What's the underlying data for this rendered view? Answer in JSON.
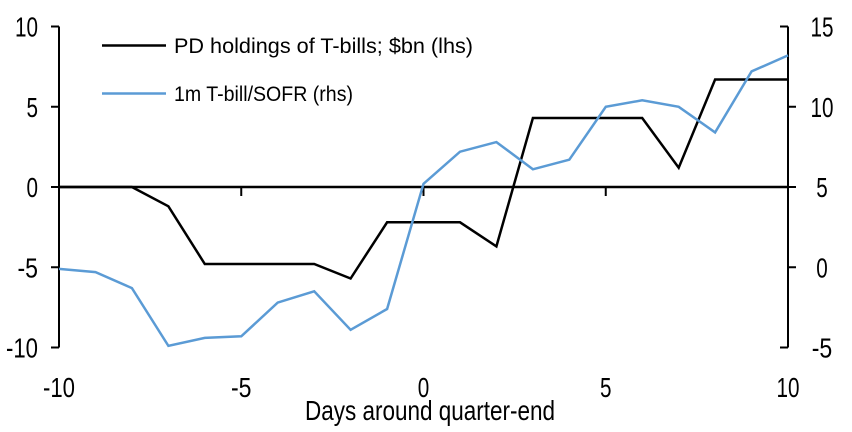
{
  "chart_data": {
    "type": "line",
    "x": [
      -10,
      -9,
      -8,
      -7,
      -6,
      -5,
      -4,
      -3,
      -2,
      -1,
      0,
      1,
      2,
      3,
      4,
      5,
      6,
      7,
      8,
      9,
      10
    ],
    "series": [
      {
        "name": "PD holdings of T-bills; $bn (lhs)",
        "axis": "left",
        "color": "#000000",
        "values": [
          0,
          0,
          0,
          -1.2,
          -4.8,
          -4.8,
          -4.8,
          -4.8,
          -5.7,
          -2.2,
          -2.2,
          -2.2,
          -3.7,
          4.3,
          4.3,
          4.3,
          4.3,
          1.2,
          6.7,
          6.7,
          6.7
        ]
      },
      {
        "name": "1m T-bill/SOFR (rhs)",
        "axis": "right",
        "color": "#5B9BD5",
        "values": [
          -0.1,
          -0.3,
          -1.3,
          -4.9,
          -4.4,
          -4.3,
          -2.2,
          -1.5,
          -3.9,
          -2.6,
          5.2,
          7.2,
          7.8,
          6.1,
          6.7,
          10.0,
          10.4,
          10.0,
          8.4,
          12.2,
          13.2
        ]
      }
    ],
    "xlabel": "Days around quarter-end",
    "x_ticks": [
      -10,
      -5,
      0,
      5,
      10
    ],
    "left_axis": {
      "min": -10,
      "max": 10,
      "ticks": [
        10,
        5,
        0,
        -5,
        -10
      ]
    },
    "right_axis": {
      "min": -5,
      "max": 15,
      "ticks": [
        15,
        10,
        5,
        0,
        -5
      ]
    },
    "grid": false,
    "legend_position": "top-left",
    "background": "#ffffff"
  }
}
